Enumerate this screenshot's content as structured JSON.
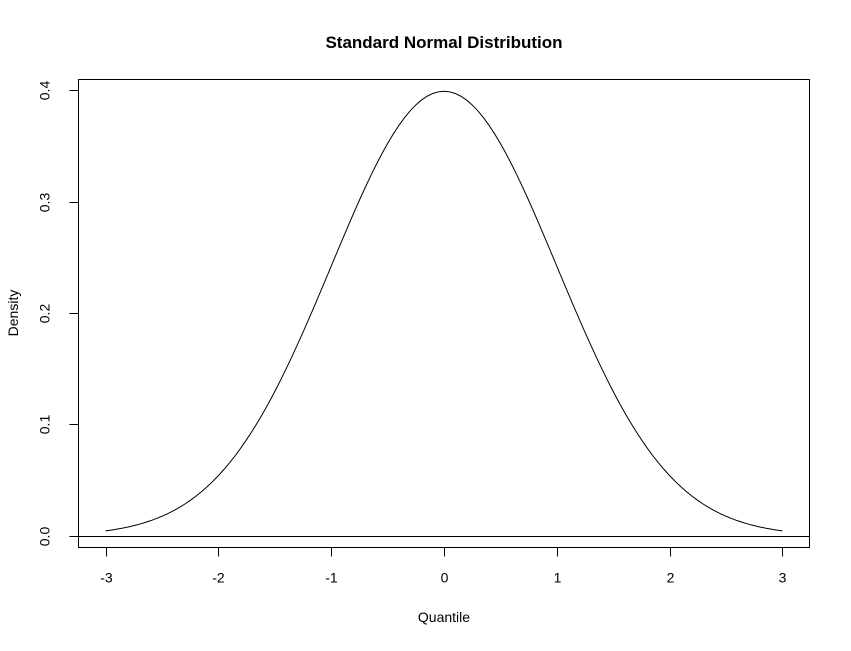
{
  "chart_data": {
    "type": "line",
    "title": "Standard Normal Distribution",
    "xlabel": "Quantile",
    "ylabel": "Density",
    "xlim": [
      -3.24,
      3.24
    ],
    "ylim": [
      -0.0105,
      0.4095
    ],
    "x_ticks": [
      "-3",
      "-2",
      "-1",
      "0",
      "1",
      "2",
      "3"
    ],
    "y_ticks": [
      "0.0",
      "0.1",
      "0.2",
      "0.3",
      "0.4"
    ],
    "grid": false,
    "reference_line": {
      "y": 0
    },
    "series": [
      {
        "function": "dnorm",
        "x_range": [
          -3,
          3
        ],
        "x": [
          -3,
          -2.75,
          -2.5,
          -2.25,
          -2,
          -1.75,
          -1.5,
          -1.25,
          -1,
          -0.75,
          -0.5,
          -0.25,
          0,
          0.25,
          0.5,
          0.75,
          1,
          1.25,
          1.5,
          1.75,
          2,
          2.25,
          2.5,
          2.75,
          3
        ],
        "y": [
          0.0044,
          0.0091,
          0.0175,
          0.0317,
          0.054,
          0.0863,
          0.1295,
          0.1826,
          0.242,
          0.3011,
          0.3521,
          0.3867,
          0.3989,
          0.3867,
          0.3521,
          0.3011,
          0.242,
          0.1826,
          0.1295,
          0.0863,
          0.054,
          0.0317,
          0.0175,
          0.0091,
          0.0044
        ],
        "color": "#000000"
      }
    ]
  }
}
